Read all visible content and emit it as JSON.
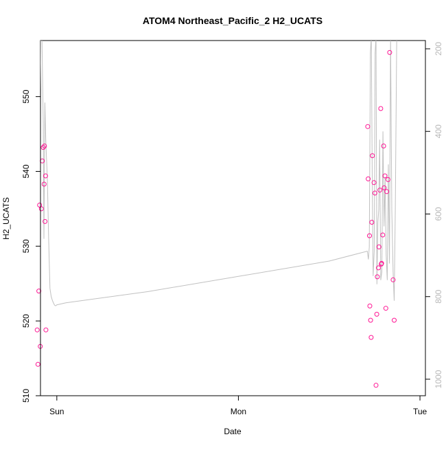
{
  "chart_data": {
    "type": "scatter",
    "title": "ATOM4 Northeast_Pacific_2 H2_UCATS",
    "xlabel": "Date",
    "ylabel": "H2_UCATS",
    "x_ticks": [
      "Sun",
      "Mon",
      "Tue"
    ],
    "x_tick_positions_days": [
      0,
      1,
      2
    ],
    "xlim_days": [
      -0.09,
      2.03
    ],
    "ylim": [
      510,
      557.5
    ],
    "y_ticks": [
      510,
      520,
      530,
      540,
      550
    ],
    "y2_ticks": [
      200,
      400,
      600,
      800,
      1000
    ],
    "y2lim_top_to_bottom": [
      180,
      1040
    ],
    "grid": false,
    "legend": "none",
    "colors": {
      "points": "#ff1493",
      "line": "#c0c0c0",
      "right_axis_labels": "#b8b8b8",
      "axis": "#000000"
    },
    "series": [
      {
        "type": "points",
        "x_days": [
          -0.108,
          -0.104,
          -0.099,
          -0.095,
          -0.091,
          -0.085,
          -0.08,
          -0.075,
          -0.07,
          -0.068,
          -0.065,
          -0.062,
          -0.06,
          1.712,
          1.715,
          1.722,
          1.724,
          1.728,
          1.731,
          1.735,
          1.738,
          1.747,
          1.752,
          1.758,
          1.762,
          1.765,
          1.771,
          1.774,
          1.779,
          1.784,
          1.787,
          1.789,
          1.795,
          1.8,
          1.803,
          1.807,
          1.812,
          1.817,
          1.824,
          1.833,
          1.852,
          1.858
        ],
        "y": [
          518.8,
          514.2,
          524.0,
          535.5,
          516.6,
          535.0,
          541.4,
          543.2,
          538.3,
          543.4,
          533.3,
          539.4,
          518.8,
          546.0,
          539.0,
          531.4,
          522.0,
          520.1,
          517.8,
          533.2,
          542.1,
          538.5,
          537.1,
          511.4,
          520.9,
          525.9,
          527.1,
          529.9,
          537.5,
          548.4,
          527.6,
          527.7,
          531.5,
          543.4,
          537.8,
          539.4,
          521.7,
          537.3,
          538.9,
          555.9,
          525.5,
          520.1
        ]
      },
      {
        "type": "line",
        "axis": "right",
        "x_days": [
          -0.093,
          -0.088,
          -0.082,
          -0.075,
          -0.071,
          -0.066,
          -0.061,
          -0.052,
          -0.045,
          -0.038,
          -0.031,
          -0.024,
          -0.016,
          -0.01,
          -0.005,
          0.0,
          0.05,
          0.5,
          1.0,
          1.5,
          1.71,
          1.716,
          1.721,
          1.727,
          1.732,
          1.738,
          1.742,
          1.748,
          1.753,
          1.758,
          1.763,
          1.768,
          1.773,
          1.778,
          1.784,
          1.79,
          1.796,
          1.802,
          1.808,
          1.814,
          1.82,
          1.826,
          1.832,
          1.838,
          1.845,
          1.852,
          1.858,
          1.864,
          1.872
        ],
        "y": [
          340,
          170,
          170,
          380,
          660,
          330,
          420,
          520,
          660,
          780,
          800,
          810,
          818,
          822,
          822,
          820,
          815,
          788,
          751,
          714,
          690,
          710,
          680,
          210,
          170,
          560,
          750,
          690,
          210,
          170,
          770,
          620,
          590,
          420,
          760,
          740,
          400,
          630,
          510,
          700,
          760,
          480,
          720,
          170,
          590,
          740,
          810,
          590,
          170
        ]
      }
    ]
  }
}
